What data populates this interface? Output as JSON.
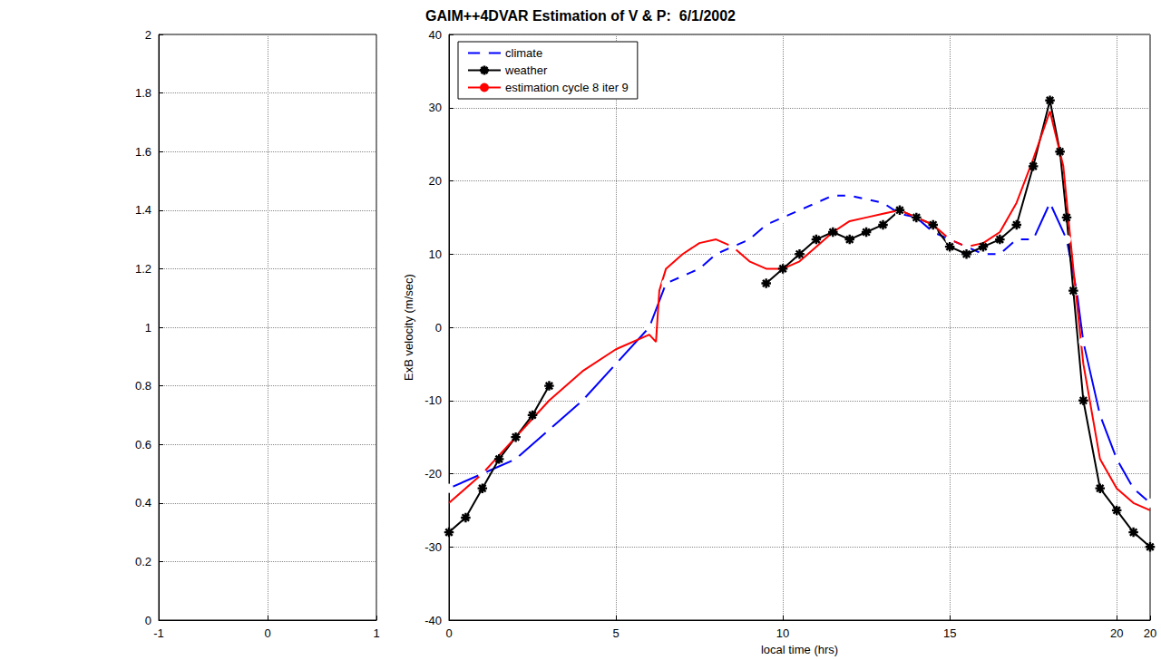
{
  "title": "GAIM++4DVAR Estimation of V & P:  6/1/2002",
  "chart_data": [
    {
      "type": "line",
      "xlim": [
        -1,
        1
      ],
      "xticks": [
        -1,
        0,
        1
      ],
      "ylim": [
        0,
        2
      ],
      "yticks": [
        0,
        0.2,
        0.4,
        0.6,
        0.8,
        1,
        1.2,
        1.4,
        1.6,
        1.8,
        2
      ],
      "grid": true,
      "series": []
    },
    {
      "type": "line",
      "x_label": "local time (hrs)",
      "y_label": "ExB velocity (m/sec)",
      "xlim": [
        0,
        21
      ],
      "xticks": [
        0,
        5,
        10,
        15,
        20
      ],
      "ylim": [
        -40,
        40
      ],
      "yticks": [
        -40,
        -30,
        -20,
        -10,
        0,
        10,
        20,
        30,
        40
      ],
      "grid": true,
      "legend": "upper left",
      "series": [
        {
          "name": "climate",
          "color": "#0000ff",
          "marker": "circle",
          "line_style": "solid",
          "x": [
            0,
            1,
            2,
            3,
            4,
            5,
            6,
            6.5,
            7,
            7.5,
            8,
            8.5,
            9,
            9.5,
            10,
            10.5,
            11,
            11.5,
            12,
            12.5,
            13,
            13.5,
            14,
            14.5,
            15,
            15.5,
            16,
            16.5,
            17,
            17.5,
            18,
            18.5,
            18.8,
            19,
            19.5,
            20,
            20.5,
            21
          ],
          "values": [
            -22,
            -20,
            -18,
            -14,
            -10,
            -5,
            0,
            6,
            7,
            8,
            10,
            11,
            12,
            14,
            15,
            16,
            17,
            18,
            18,
            17.5,
            17,
            15.5,
            15,
            13,
            12,
            11,
            10,
            10,
            12,
            12,
            17,
            12,
            5,
            -2,
            -12,
            -18,
            -22,
            -24
          ]
        },
        {
          "name": "weather",
          "color": "#000000",
          "marker": "asterisk",
          "line_style": "solid",
          "x": [
            0,
            0.5,
            1,
            1.5,
            2,
            2.5,
            3,
            6,
            9.5,
            10,
            10.5,
            11,
            11.5,
            12,
            12.5,
            13,
            13.5,
            14,
            14.5,
            15,
            15.5,
            16,
            16.5,
            17,
            17.5,
            18,
            18.3,
            18.5,
            18.7,
            19,
            19.5,
            20,
            20.5,
            21
          ],
          "values": [
            -28,
            -26,
            -22,
            -18,
            -15,
            -12,
            -8,
            null,
            6,
            8,
            10,
            12,
            13,
            12,
            13,
            14,
            16,
            15,
            14,
            11,
            10,
            11,
            12,
            14,
            22,
            31,
            24,
            15,
            5,
            -10,
            -22,
            -25,
            -28,
            -30
          ]
        },
        {
          "name": "estimation cycle 8 iter 9",
          "color": "#ff0000",
          "marker": "none",
          "line_style": "solid",
          "x": [
            0,
            1,
            2,
            3,
            4,
            5,
            6,
            6.2,
            6.3,
            6.5,
            7,
            7.5,
            8,
            8.5,
            9,
            9.5,
            10,
            10.5,
            11,
            11.5,
            12,
            12.5,
            13,
            13.5,
            14,
            14.5,
            15,
            15.5,
            16,
            16.5,
            17,
            17.5,
            18,
            18.4,
            18.7,
            19,
            19.5,
            20,
            20.5,
            21
          ],
          "values": [
            -24,
            -20,
            -15,
            -10,
            -6,
            -3,
            -1,
            -2,
            5,
            8,
            10,
            11.5,
            12,
            11,
            9,
            8,
            8,
            9,
            11,
            13,
            14.5,
            15,
            15.5,
            16,
            15,
            14,
            12,
            11,
            11.5,
            13,
            17,
            23,
            29.5,
            22,
            8,
            -5,
            -18,
            -22,
            -24,
            -25
          ]
        }
      ]
    }
  ]
}
